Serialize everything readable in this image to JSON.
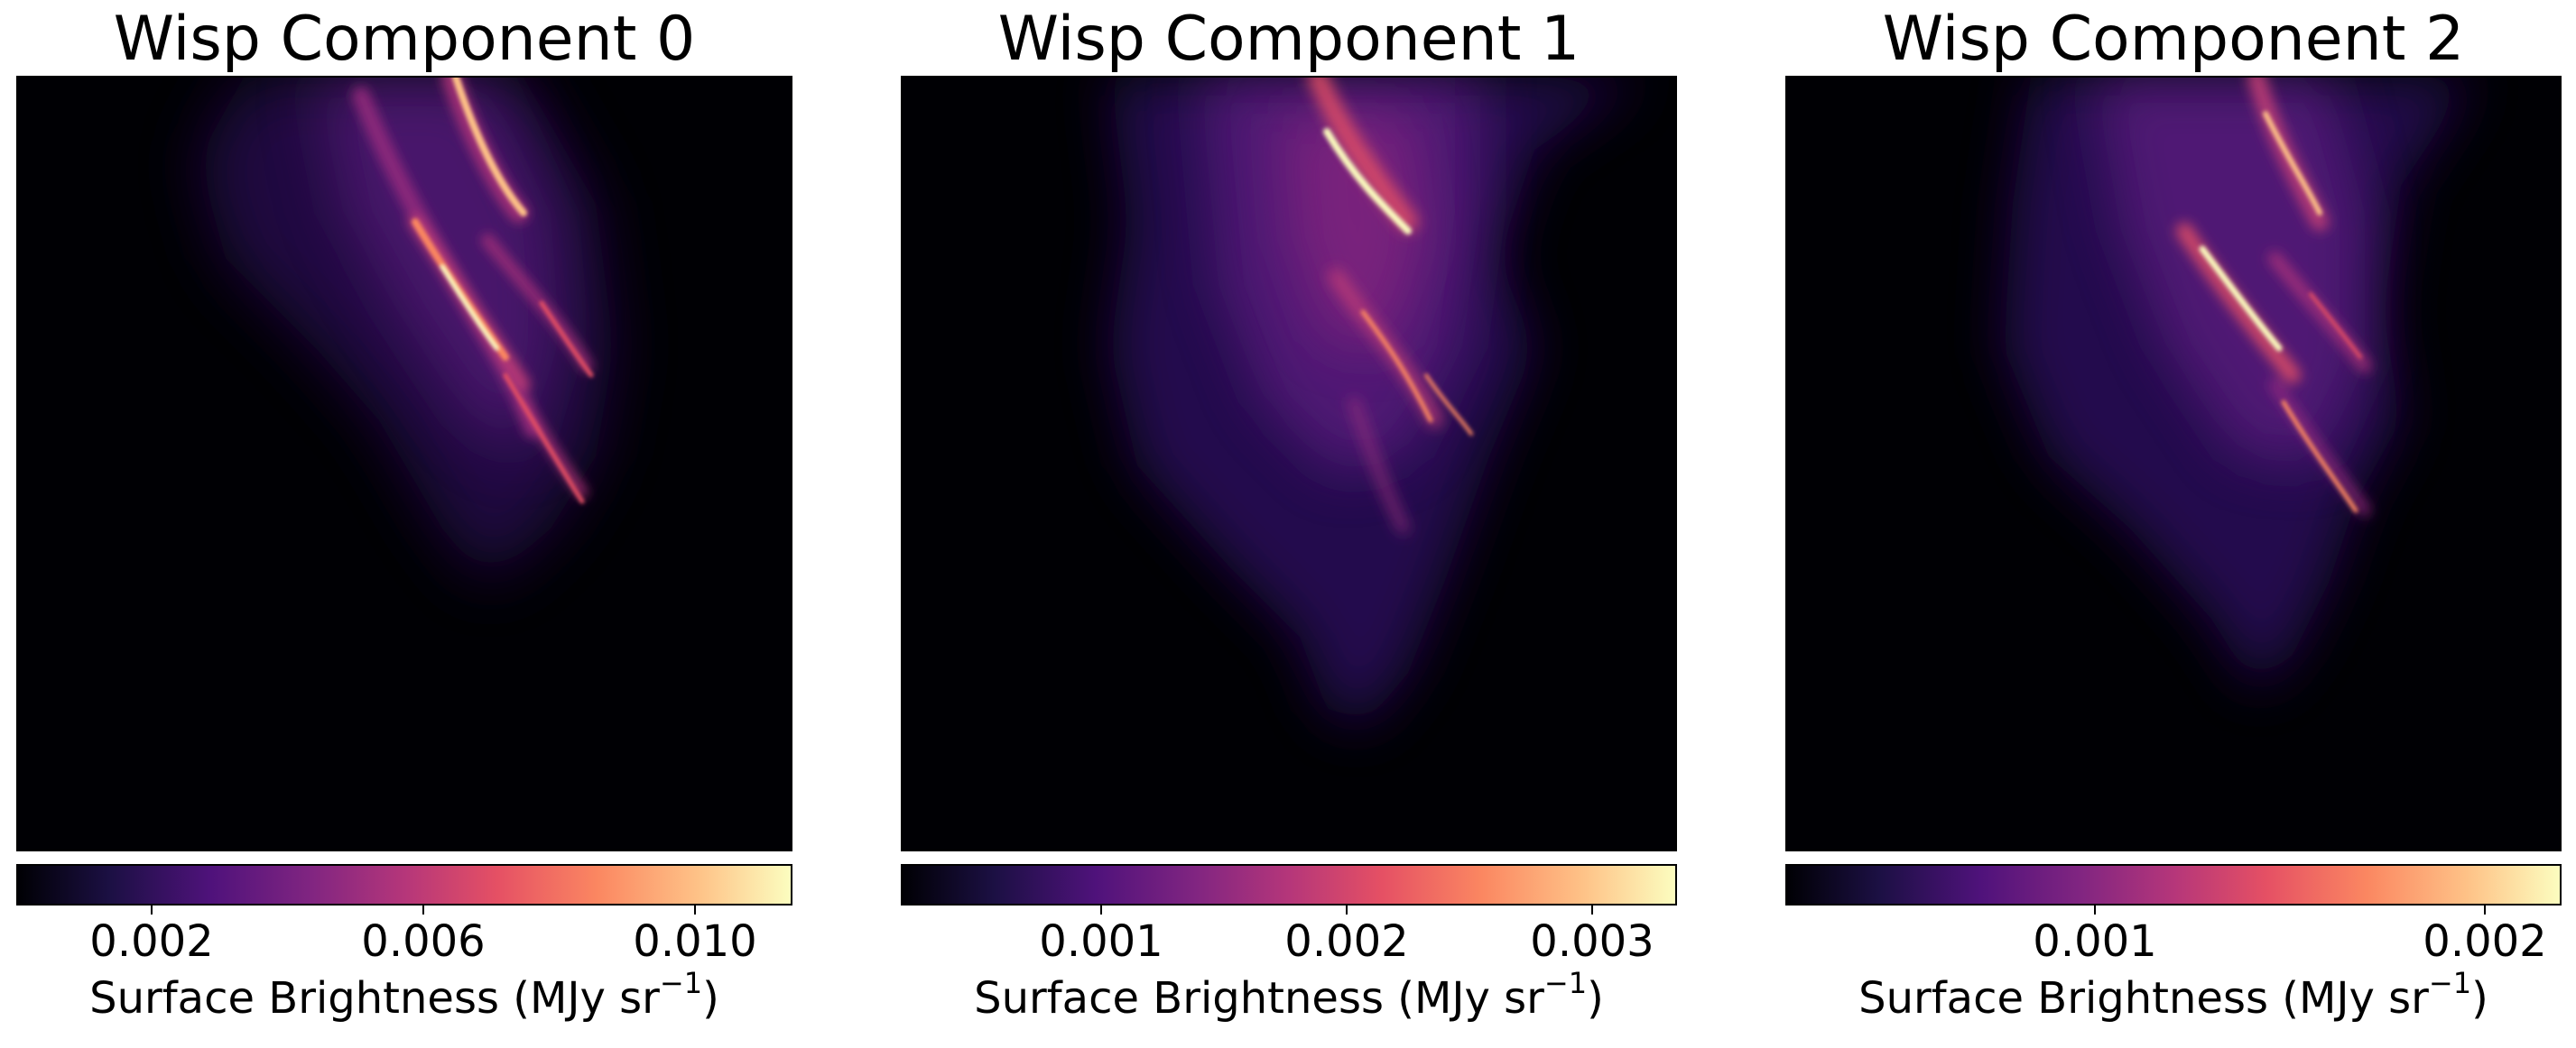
{
  "panels": [
    {
      "title": "Wisp Component 0",
      "colorbar": {
        "colormap": "magma",
        "min": 0.0,
        "max": 0.0114,
        "ticks": [
          "0.002",
          "0.006",
          "0.010"
        ],
        "tick_values": [
          0.002,
          0.006,
          0.01
        ],
        "label": "Surface Brightness (MJy sr",
        "label_exponent": "−1",
        "label_close": ")"
      }
    },
    {
      "title": "Wisp Component 1",
      "colorbar": {
        "colormap": "magma",
        "min": 0.00015,
        "max": 0.0033,
        "ticks": [
          "0.001",
          "0.002",
          "0.003"
        ],
        "tick_values": [
          0.001,
          0.002,
          0.003
        ],
        "label": "Surface Brightness (MJy sr",
        "label_exponent": "−1",
        "label_close": ")"
      }
    },
    {
      "title": "Wisp Component 2",
      "colorbar": {
        "colormap": "magma",
        "min": 0.00012,
        "max": 0.00225,
        "ticks": [
          "0.001",
          "0.002"
        ],
        "tick_values": [
          0.001,
          0.002
        ],
        "label": "Surface Brightness (MJy sr",
        "label_exponent": "−1",
        "label_close": ")"
      }
    }
  ],
  "colors": {
    "background": "#000004",
    "magma_low": "#000004",
    "magma_mid": "#b5367a",
    "magma_high": "#fcfdbf"
  }
}
